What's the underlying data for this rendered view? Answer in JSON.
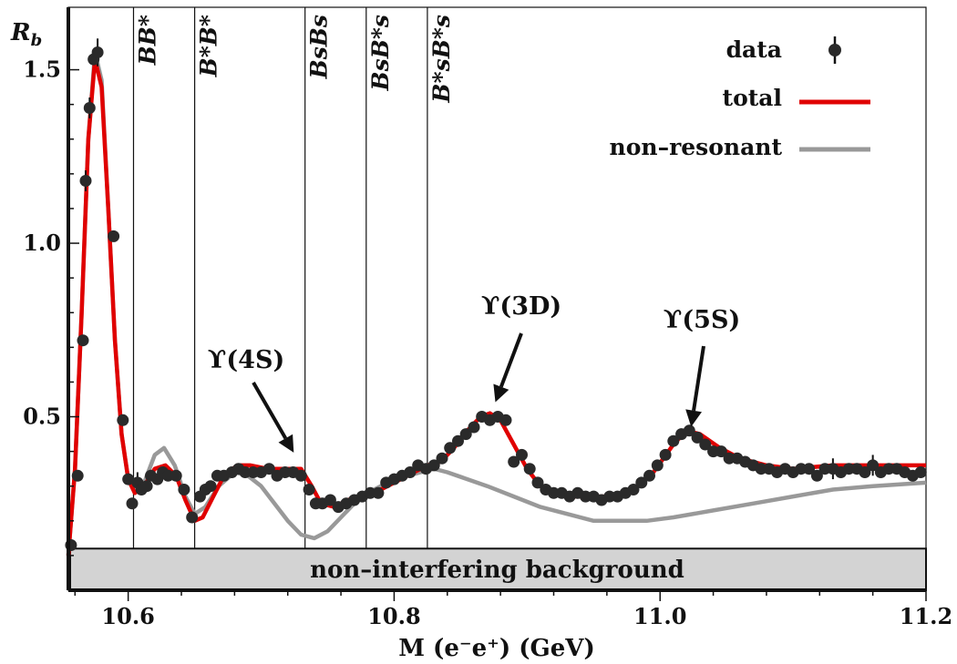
{
  "chart_data": {
    "type": "scatter",
    "ylabel": "R_b",
    "xlabel": "M (e⁻e⁺) (GeV)",
    "xlim": [
      10.555,
      11.2
    ],
    "ylim": [
      0.0,
      1.68
    ],
    "x_ticks": [
      "10.6",
      "10.8",
      "11.0",
      "11.2"
    ],
    "y_ticks": [
      "0.5",
      "1.0",
      "1.5"
    ],
    "legend": {
      "placement": "top-right",
      "entries": [
        "data",
        "total",
        "non–resonant"
      ]
    },
    "thresholds": [
      {
        "label": "BB*",
        "x": 10.604
      },
      {
        "label": "B*B*",
        "x": 10.65
      },
      {
        "label": "BsBs",
        "x": 10.733
      },
      {
        "label": "BsB*s",
        "x": 10.779
      },
      {
        "label": "B*sB*s",
        "x": 10.825
      }
    ],
    "annotations": [
      {
        "label": "ϒ(4S)",
        "x": 10.73,
        "y": 0.36
      },
      {
        "label": "ϒ(3D)",
        "x": 10.872,
        "y": 0.5
      },
      {
        "label": "ϒ(5S)",
        "x": 11.022,
        "y": 0.45
      }
    ],
    "background_band": {
      "label": "non–interfering background",
      "ymin": 0.0,
      "ymax": 0.12
    },
    "colors": {
      "data": "#2a2a2a",
      "total": "#e00000",
      "non_resonant": "#999999",
      "background": "#d3d3d3"
    },
    "series": [
      {
        "name": "data",
        "points": [
          [
            10.557,
            0.13
          ],
          [
            10.562,
            0.33
          ],
          [
            10.566,
            0.72
          ],
          [
            10.568,
            1.18
          ],
          [
            10.571,
            1.39
          ],
          [
            10.574,
            1.53
          ],
          [
            10.577,
            1.55
          ],
          [
            10.589,
            1.02
          ],
          [
            10.596,
            0.49
          ],
          [
            10.6,
            0.32
          ],
          [
            10.603,
            0.25
          ],
          [
            10.607,
            0.31
          ],
          [
            10.61,
            0.29
          ],
          [
            10.614,
            0.3
          ],
          [
            10.617,
            0.33
          ],
          [
            10.622,
            0.32
          ],
          [
            10.626,
            0.34
          ],
          [
            10.63,
            0.33
          ],
          [
            10.636,
            0.33
          ],
          [
            10.642,
            0.29
          ],
          [
            10.648,
            0.21
          ],
          [
            10.654,
            0.27
          ],
          [
            10.658,
            0.29
          ],
          [
            10.662,
            0.3
          ],
          [
            10.667,
            0.33
          ],
          [
            10.672,
            0.33
          ],
          [
            10.678,
            0.34
          ],
          [
            10.683,
            0.35
          ],
          [
            10.688,
            0.34
          ],
          [
            10.694,
            0.34
          ],
          [
            10.7,
            0.34
          ],
          [
            10.706,
            0.35
          ],
          [
            10.712,
            0.33
          ],
          [
            10.718,
            0.34
          ],
          [
            10.724,
            0.34
          ],
          [
            10.73,
            0.33
          ],
          [
            10.736,
            0.29
          ],
          [
            10.741,
            0.25
          ],
          [
            10.746,
            0.25
          ],
          [
            10.752,
            0.26
          ],
          [
            10.758,
            0.24
          ],
          [
            10.764,
            0.25
          ],
          [
            10.77,
            0.26
          ],
          [
            10.776,
            0.27
          ],
          [
            10.782,
            0.28
          ],
          [
            10.788,
            0.28
          ],
          [
            10.794,
            0.31
          ],
          [
            10.8,
            0.32
          ],
          [
            10.806,
            0.33
          ],
          [
            10.812,
            0.34
          ],
          [
            10.818,
            0.36
          ],
          [
            10.824,
            0.35
          ],
          [
            10.83,
            0.36
          ],
          [
            10.836,
            0.38
          ],
          [
            10.842,
            0.41
          ],
          [
            10.848,
            0.43
          ],
          [
            10.854,
            0.45
          ],
          [
            10.86,
            0.47
          ],
          [
            10.866,
            0.5
          ],
          [
            10.872,
            0.49
          ],
          [
            10.878,
            0.5
          ],
          [
            10.884,
            0.49
          ],
          [
            10.89,
            0.37
          ],
          [
            10.896,
            0.39
          ],
          [
            10.902,
            0.35
          ],
          [
            10.908,
            0.31
          ],
          [
            10.914,
            0.29
          ],
          [
            10.92,
            0.28
          ],
          [
            10.926,
            0.28
          ],
          [
            10.932,
            0.27
          ],
          [
            10.938,
            0.28
          ],
          [
            10.944,
            0.27
          ],
          [
            10.95,
            0.27
          ],
          [
            10.956,
            0.26
          ],
          [
            10.962,
            0.27
          ],
          [
            10.968,
            0.27
          ],
          [
            10.974,
            0.28
          ],
          [
            10.98,
            0.29
          ],
          [
            10.986,
            0.31
          ],
          [
            10.992,
            0.33
          ],
          [
            10.998,
            0.36
          ],
          [
            11.004,
            0.39
          ],
          [
            11.01,
            0.43
          ],
          [
            11.016,
            0.45
          ],
          [
            11.022,
            0.46
          ],
          [
            11.028,
            0.44
          ],
          [
            11.034,
            0.42
          ],
          [
            11.04,
            0.4
          ],
          [
            11.046,
            0.4
          ],
          [
            11.052,
            0.38
          ],
          [
            11.058,
            0.38
          ],
          [
            11.064,
            0.37
          ],
          [
            11.07,
            0.36
          ],
          [
            11.076,
            0.35
          ],
          [
            11.082,
            0.35
          ],
          [
            11.088,
            0.34
          ],
          [
            11.094,
            0.35
          ],
          [
            11.1,
            0.34
          ],
          [
            11.106,
            0.35
          ],
          [
            11.112,
            0.35
          ],
          [
            11.118,
            0.33
          ],
          [
            11.124,
            0.35
          ],
          [
            11.13,
            0.35
          ],
          [
            11.136,
            0.34
          ],
          [
            11.142,
            0.35
          ],
          [
            11.148,
            0.35
          ],
          [
            11.154,
            0.34
          ],
          [
            11.16,
            0.36
          ],
          [
            11.166,
            0.34
          ],
          [
            11.172,
            0.35
          ],
          [
            11.178,
            0.35
          ],
          [
            11.184,
            0.34
          ],
          [
            11.19,
            0.33
          ],
          [
            11.196,
            0.34
          ]
        ]
      },
      {
        "name": "total",
        "points": [
          [
            10.555,
            0.1
          ],
          [
            10.56,
            0.35
          ],
          [
            10.565,
            0.8
          ],
          [
            10.57,
            1.3
          ],
          [
            10.575,
            1.53
          ],
          [
            10.58,
            1.45
          ],
          [
            10.585,
            1.1
          ],
          [
            10.59,
            0.72
          ],
          [
            10.595,
            0.45
          ],
          [
            10.6,
            0.32
          ],
          [
            10.605,
            0.28
          ],
          [
            10.612,
            0.3
          ],
          [
            10.62,
            0.35
          ],
          [
            10.628,
            0.36
          ],
          [
            10.636,
            0.33
          ],
          [
            10.643,
            0.26
          ],
          [
            10.65,
            0.2
          ],
          [
            10.656,
            0.21
          ],
          [
            10.664,
            0.27
          ],
          [
            10.672,
            0.33
          ],
          [
            10.682,
            0.36
          ],
          [
            10.692,
            0.36
          ],
          [
            10.705,
            0.35
          ],
          [
            10.72,
            0.35
          ],
          [
            10.73,
            0.35
          ],
          [
            10.738,
            0.3
          ],
          [
            10.745,
            0.25
          ],
          [
            10.755,
            0.24
          ],
          [
            10.765,
            0.26
          ],
          [
            10.775,
            0.27
          ],
          [
            10.785,
            0.28
          ],
          [
            10.795,
            0.3
          ],
          [
            10.805,
            0.32
          ],
          [
            10.815,
            0.34
          ],
          [
            10.825,
            0.36
          ],
          [
            10.835,
            0.37
          ],
          [
            10.845,
            0.41
          ],
          [
            10.855,
            0.46
          ],
          [
            10.865,
            0.5
          ],
          [
            10.872,
            0.51
          ],
          [
            10.88,
            0.49
          ],
          [
            10.89,
            0.42
          ],
          [
            10.9,
            0.35
          ],
          [
            10.91,
            0.3
          ],
          [
            10.92,
            0.28
          ],
          [
            10.935,
            0.27
          ],
          [
            10.95,
            0.27
          ],
          [
            10.965,
            0.27
          ],
          [
            10.98,
            0.29
          ],
          [
            10.995,
            0.34
          ],
          [
            11.01,
            0.42
          ],
          [
            11.02,
            0.46
          ],
          [
            11.03,
            0.45
          ],
          [
            11.045,
            0.41
          ],
          [
            11.06,
            0.38
          ],
          [
            11.08,
            0.36
          ],
          [
            11.1,
            0.35
          ],
          [
            11.13,
            0.36
          ],
          [
            11.16,
            0.36
          ],
          [
            11.2,
            0.36
          ]
        ]
      },
      {
        "name": "non–resonant",
        "points": [
          [
            10.555,
            0.1
          ],
          [
            10.56,
            0.35
          ],
          [
            10.565,
            0.8
          ],
          [
            10.57,
            1.3
          ],
          [
            10.575,
            1.55
          ],
          [
            10.58,
            1.47
          ],
          [
            10.585,
            1.1
          ],
          [
            10.59,
            0.72
          ],
          [
            10.595,
            0.45
          ],
          [
            10.6,
            0.32
          ],
          [
            10.605,
            0.29
          ],
          [
            10.612,
            0.31
          ],
          [
            10.62,
            0.39
          ],
          [
            10.627,
            0.41
          ],
          [
            10.635,
            0.36
          ],
          [
            10.643,
            0.27
          ],
          [
            10.65,
            0.22
          ],
          [
            10.658,
            0.24
          ],
          [
            10.668,
            0.3
          ],
          [
            10.68,
            0.34
          ],
          [
            10.69,
            0.33
          ],
          [
            10.7,
            0.3
          ],
          [
            10.71,
            0.25
          ],
          [
            10.72,
            0.2
          ],
          [
            10.73,
            0.16
          ],
          [
            10.74,
            0.15
          ],
          [
            10.75,
            0.17
          ],
          [
            10.76,
            0.21
          ],
          [
            10.77,
            0.25
          ],
          [
            10.78,
            0.28
          ],
          [
            10.79,
            0.3
          ],
          [
            10.8,
            0.32
          ],
          [
            10.81,
            0.33
          ],
          [
            10.82,
            0.34
          ],
          [
            10.83,
            0.35
          ],
          [
            10.84,
            0.34
          ],
          [
            10.855,
            0.32
          ],
          [
            10.87,
            0.3
          ],
          [
            10.89,
            0.27
          ],
          [
            10.91,
            0.24
          ],
          [
            10.93,
            0.22
          ],
          [
            10.95,
            0.2
          ],
          [
            10.97,
            0.2
          ],
          [
            10.99,
            0.2
          ],
          [
            11.01,
            0.21
          ],
          [
            11.04,
            0.23
          ],
          [
            11.07,
            0.25
          ],
          [
            11.1,
            0.27
          ],
          [
            11.13,
            0.29
          ],
          [
            11.16,
            0.3
          ],
          [
            11.2,
            0.31
          ]
        ]
      }
    ],
    "error_bars": [
      {
        "x": 10.577,
        "y": 1.55,
        "err": 0.04
      },
      {
        "x": 10.571,
        "y": 1.39,
        "err": 0.03
      },
      {
        "x": 10.568,
        "y": 1.18,
        "err": 0.03
      },
      {
        "x": 10.607,
        "y": 0.31,
        "err": 0.03
      },
      {
        "x": 11.13,
        "y": 0.35,
        "err": 0.03
      },
      {
        "x": 11.16,
        "y": 0.36,
        "err": 0.03
      }
    ]
  }
}
